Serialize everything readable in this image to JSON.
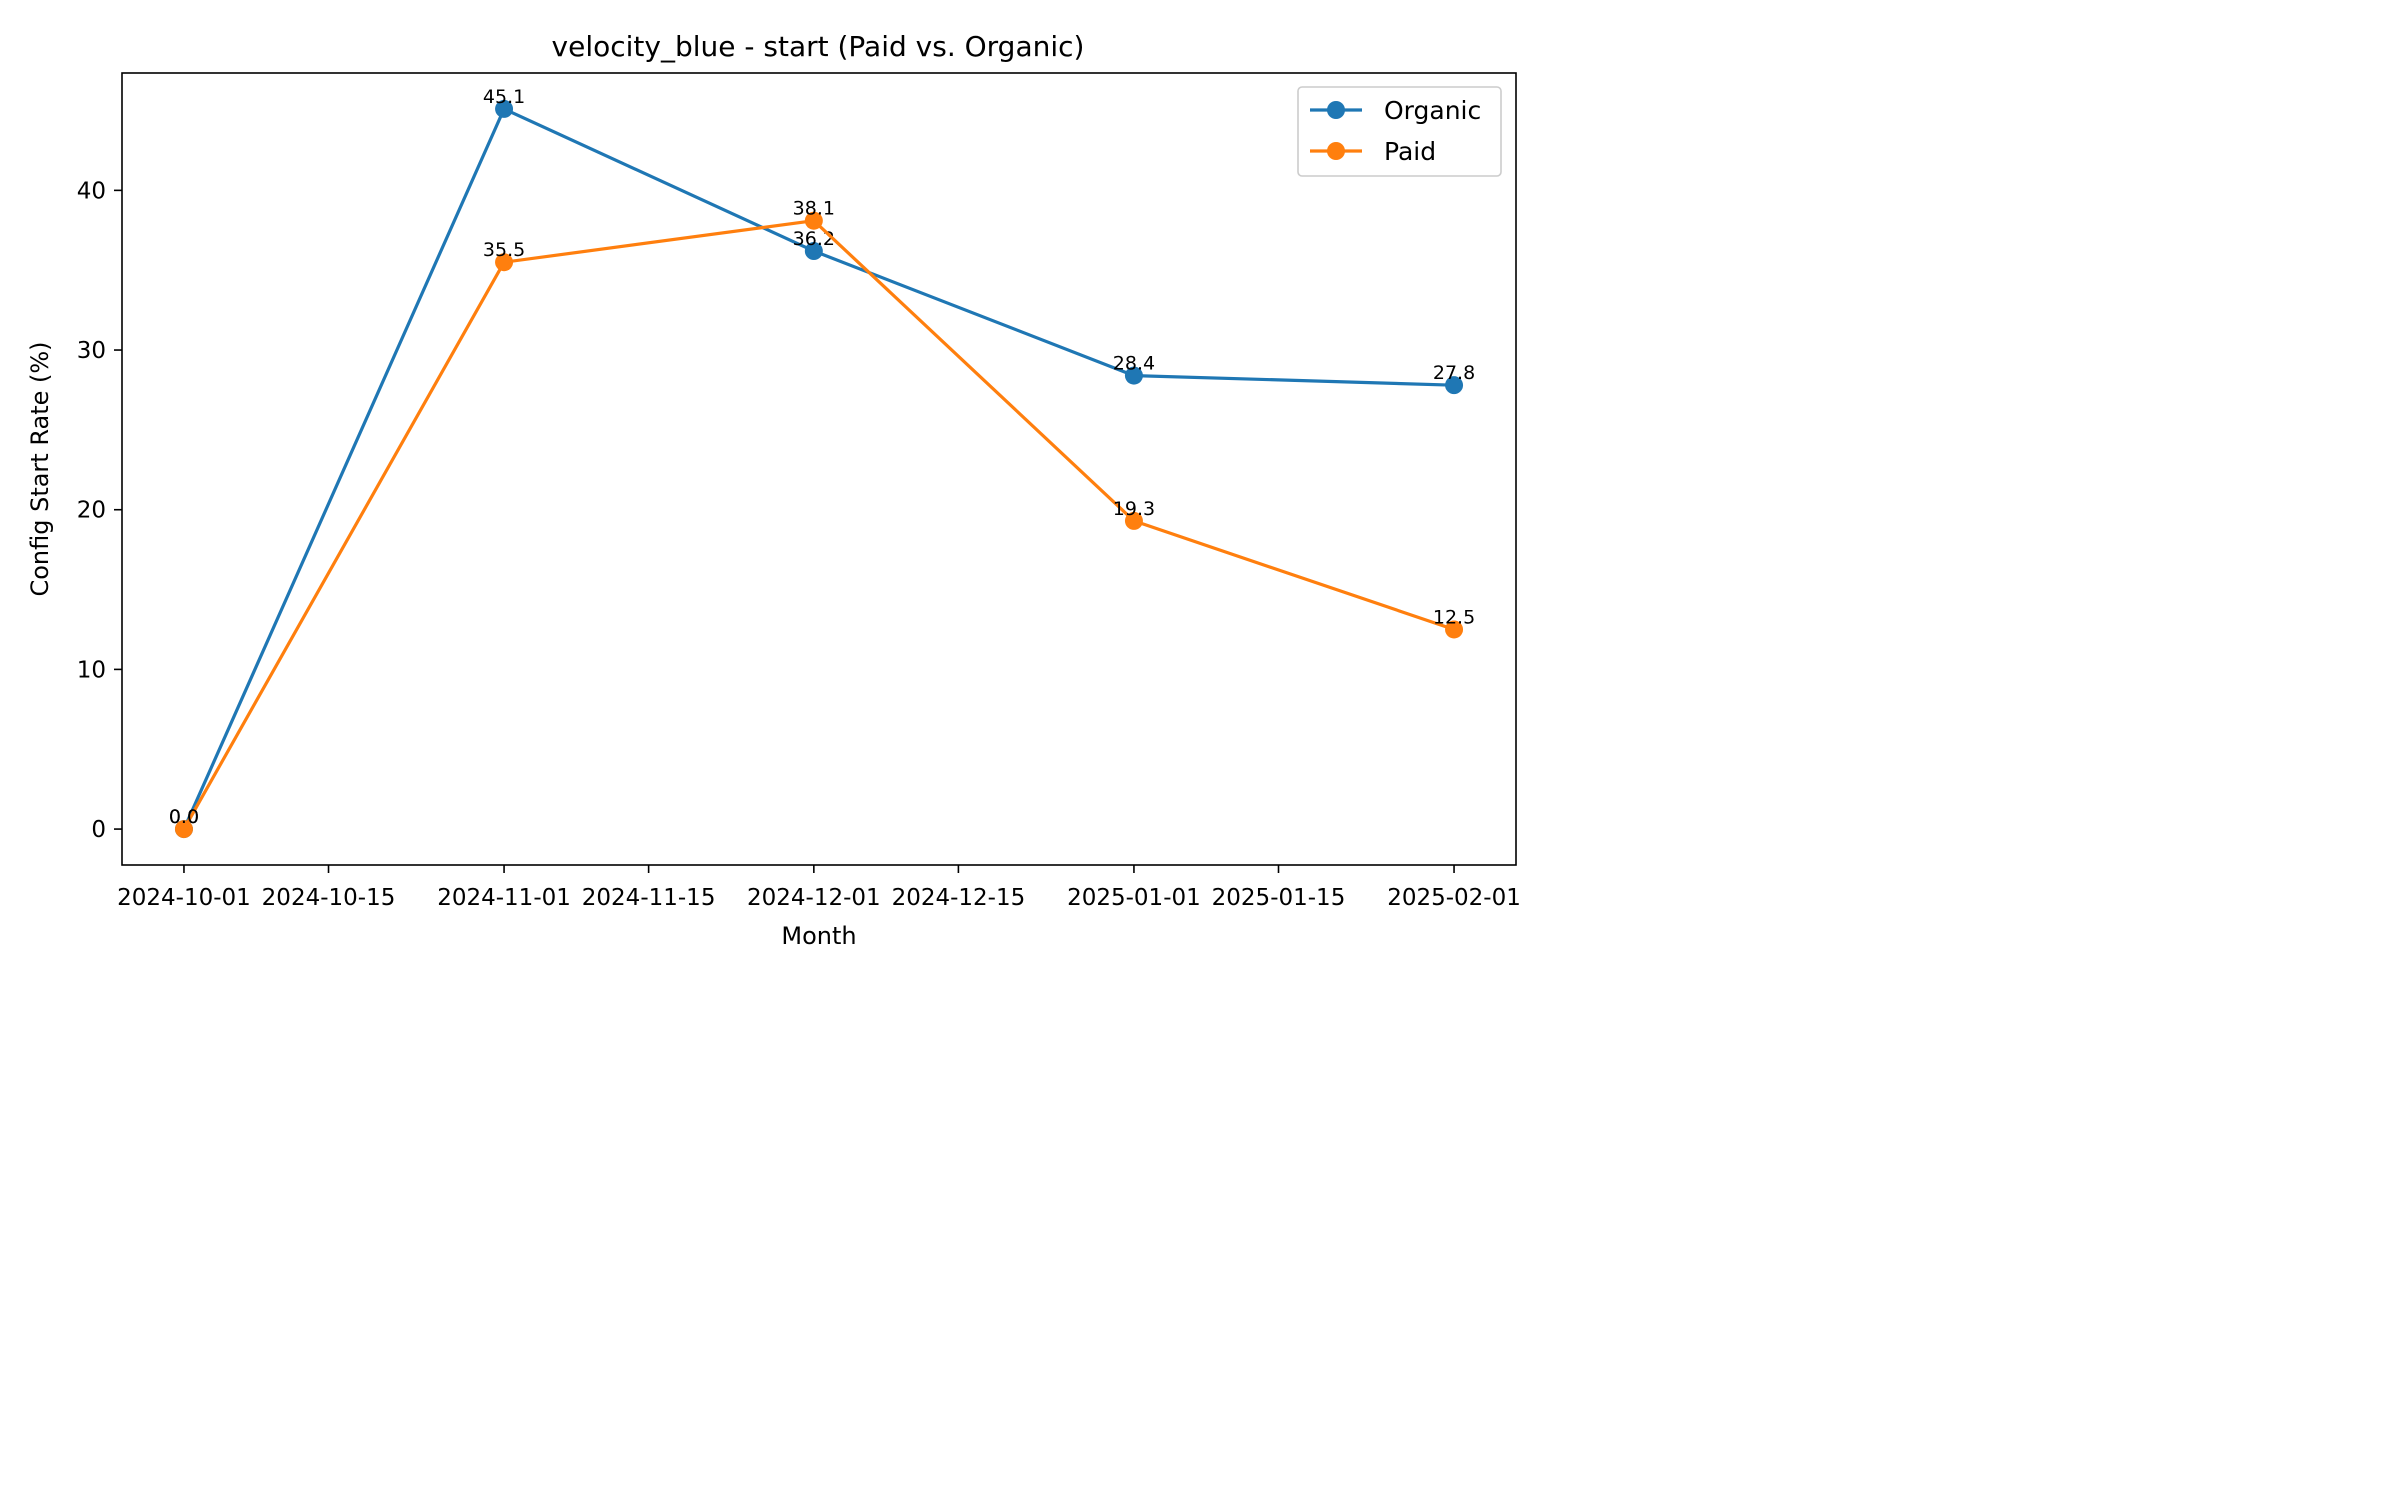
{
  "chart_data": {
    "type": "line",
    "title": "velocity_blue - start (Paid vs. Organic)",
    "xlabel": "Month",
    "ylabel": "Config Start Rate (%)",
    "x": [
      "2024-10-01",
      "2024-11-01",
      "2024-12-01",
      "2025-01-01",
      "2025-02-01"
    ],
    "x_ticks": [
      "2024-10-01",
      "2024-10-15",
      "2024-11-01",
      "2024-11-15",
      "2024-12-01",
      "2024-12-15",
      "2025-01-01",
      "2025-01-15",
      "2025-02-01"
    ],
    "y_ticks": [
      0,
      10,
      20,
      30,
      40
    ],
    "xlim": [
      "2024-09-25",
      "2025-02-07"
    ],
    "ylim": [
      -2.25,
      47.35
    ],
    "grid": false,
    "legend_position": "upper right",
    "series": [
      {
        "name": "Organic",
        "color": "#1f77b4",
        "marker": "circle",
        "values": [
          0.0,
          45.1,
          36.2,
          28.4,
          27.8
        ],
        "labels": [
          "0.0",
          "45.1",
          "36.2",
          "28.4",
          "27.8"
        ]
      },
      {
        "name": "Paid",
        "color": "#ff7f0e",
        "marker": "circle",
        "values": [
          0.0,
          35.5,
          38.1,
          19.3,
          12.5
        ],
        "labels": [
          "0.0",
          "35.5",
          "38.1",
          "19.3",
          "12.5"
        ]
      }
    ]
  }
}
